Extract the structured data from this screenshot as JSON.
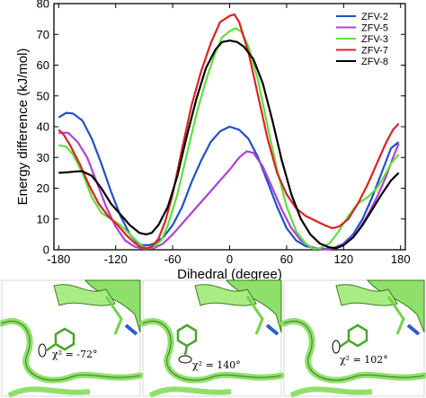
{
  "chart_data": {
    "type": "line",
    "xlabel": "Dihedral (degree)",
    "ylabel": "Energy difference (kJ/mol)",
    "xlim": [
      -185,
      185
    ],
    "ylim": [
      0,
      80
    ],
    "xticks": [
      -180,
      -120,
      -60,
      0,
      60,
      120,
      180
    ],
    "yticks": [
      0,
      10,
      20,
      30,
      40,
      50,
      60,
      70,
      80
    ],
    "grid": false,
    "legend_position": "top-right",
    "series": [
      {
        "name": "ZFV-2",
        "color": "#1f4fcf",
        "points": [
          [
            -180,
            43
          ],
          [
            -172,
            44.5
          ],
          [
            -165,
            44.3
          ],
          [
            -155,
            42
          ],
          [
            -145,
            36
          ],
          [
            -135,
            28
          ],
          [
            -125,
            19
          ],
          [
            -115,
            11
          ],
          [
            -105,
            5
          ],
          [
            -98,
            2.5
          ],
          [
            -92,
            1.5
          ],
          [
            -85,
            1.5
          ],
          [
            -78,
            2.2
          ],
          [
            -70,
            4
          ],
          [
            -60,
            8
          ],
          [
            -50,
            14
          ],
          [
            -40,
            22
          ],
          [
            -30,
            29
          ],
          [
            -20,
            35
          ],
          [
            -10,
            38.5
          ],
          [
            0,
            40
          ],
          [
            10,
            39
          ],
          [
            20,
            36
          ],
          [
            30,
            30
          ],
          [
            40,
            22
          ],
          [
            50,
            14
          ],
          [
            60,
            7
          ],
          [
            70,
            3
          ],
          [
            80,
            1.2
          ],
          [
            90,
            0.5
          ],
          [
            100,
            0.3
          ],
          [
            110,
            0.6
          ],
          [
            120,
            2
          ],
          [
            130,
            5
          ],
          [
            140,
            10
          ],
          [
            150,
            17
          ],
          [
            160,
            25
          ],
          [
            170,
            33
          ],
          [
            178,
            35
          ]
        ]
      },
      {
        "name": "ZFV-5",
        "color": "#b040d8",
        "points": [
          [
            -180,
            38
          ],
          [
            -170,
            38
          ],
          [
            -160,
            35
          ],
          [
            -150,
            30
          ],
          [
            -140,
            22
          ],
          [
            -130,
            14
          ],
          [
            -120,
            7.5
          ],
          [
            -110,
            3
          ],
          [
            -100,
            1
          ],
          [
            -90,
            0.3
          ],
          [
            -80,
            0.5
          ],
          [
            -70,
            2
          ],
          [
            -60,
            5
          ],
          [
            -50,
            8.5
          ],
          [
            -40,
            12
          ],
          [
            -30,
            15.5
          ],
          [
            -20,
            19
          ],
          [
            -10,
            22.5
          ],
          [
            0,
            26
          ],
          [
            10,
            30
          ],
          [
            18,
            32
          ],
          [
            25,
            31.5
          ],
          [
            35,
            27
          ],
          [
            45,
            20
          ],
          [
            55,
            13
          ],
          [
            65,
            7
          ],
          [
            75,
            3
          ],
          [
            85,
            1
          ],
          [
            95,
            0.2
          ],
          [
            105,
            0.2
          ],
          [
            115,
            1
          ],
          [
            125,
            3
          ],
          [
            135,
            6
          ],
          [
            145,
            11
          ],
          [
            155,
            17
          ],
          [
            165,
            24
          ],
          [
            172,
            30
          ],
          [
            178,
            34.5
          ]
        ]
      },
      {
        "name": "ZFV-3",
        "color": "#5fe03a",
        "points": [
          [
            -180,
            34
          ],
          [
            -172,
            33.5
          ],
          [
            -165,
            31
          ],
          [
            -155,
            25
          ],
          [
            -145,
            17
          ],
          [
            -135,
            12
          ],
          [
            -125,
            10
          ],
          [
            -115,
            8
          ],
          [
            -105,
            5
          ],
          [
            -95,
            2
          ],
          [
            -90,
            0.8
          ],
          [
            -85,
            0.5
          ],
          [
            -80,
            1
          ],
          [
            -72,
            3
          ],
          [
            -65,
            8
          ],
          [
            -55,
            18
          ],
          [
            -45,
            31
          ],
          [
            -35,
            44
          ],
          [
            -25,
            55
          ],
          [
            -15,
            64
          ],
          [
            -8,
            69
          ],
          [
            0,
            71
          ],
          [
            6,
            72
          ],
          [
            12,
            71
          ],
          [
            20,
            66
          ],
          [
            30,
            55
          ],
          [
            40,
            40
          ],
          [
            50,
            26
          ],
          [
            60,
            14
          ],
          [
            70,
            6
          ],
          [
            80,
            2
          ],
          [
            88,
            0.3
          ],
          [
            95,
            0.5
          ],
          [
            105,
            2
          ],
          [
            115,
            6
          ],
          [
            125,
            11
          ],
          [
            135,
            15
          ],
          [
            145,
            17
          ],
          [
            155,
            20
          ],
          [
            163,
            24
          ],
          [
            170,
            28
          ],
          [
            178,
            31
          ]
        ]
      },
      {
        "name": "ZFV-7",
        "color": "#e02020",
        "points": [
          [
            -180,
            39
          ],
          [
            -175,
            37.5
          ],
          [
            -168,
            34
          ],
          [
            -158,
            28
          ],
          [
            -148,
            21
          ],
          [
            -138,
            15
          ],
          [
            -128,
            11
          ],
          [
            -118,
            8
          ],
          [
            -108,
            4.5
          ],
          [
            -100,
            2.2
          ],
          [
            -93,
            0.8
          ],
          [
            -87,
            0.5
          ],
          [
            -82,
            1
          ],
          [
            -75,
            3.5
          ],
          [
            -68,
            9
          ],
          [
            -60,
            18
          ],
          [
            -50,
            33
          ],
          [
            -40,
            47
          ],
          [
            -30,
            58
          ],
          [
            -20,
            67
          ],
          [
            -10,
            74
          ],
          [
            0,
            76
          ],
          [
            5,
            76.5
          ],
          [
            10,
            74
          ],
          [
            20,
            64
          ],
          [
            30,
            50
          ],
          [
            40,
            36
          ],
          [
            50,
            25
          ],
          [
            60,
            18
          ],
          [
            70,
            13.5
          ],
          [
            80,
            11
          ],
          [
            90,
            9.5
          ],
          [
            100,
            8
          ],
          [
            108,
            7
          ],
          [
            115,
            7.5
          ],
          [
            125,
            10
          ],
          [
            135,
            15
          ],
          [
            145,
            21
          ],
          [
            155,
            28
          ],
          [
            165,
            35
          ],
          [
            172,
            39
          ],
          [
            178,
            41
          ]
        ]
      },
      {
        "name": "ZFV-8",
        "color": "#000000",
        "points": [
          [
            -180,
            25
          ],
          [
            -170,
            25.2
          ],
          [
            -160,
            25.5
          ],
          [
            -155,
            25.5
          ],
          [
            -145,
            24
          ],
          [
            -135,
            20
          ],
          [
            -125,
            15
          ],
          [
            -115,
            11.5
          ],
          [
            -105,
            8
          ],
          [
            -95,
            5.5
          ],
          [
            -88,
            5
          ],
          [
            -82,
            5.5
          ],
          [
            -75,
            8
          ],
          [
            -65,
            14
          ],
          [
            -55,
            24
          ],
          [
            -45,
            37
          ],
          [
            -35,
            49
          ],
          [
            -25,
            59
          ],
          [
            -15,
            65
          ],
          [
            -8,
            67.5
          ],
          [
            0,
            68
          ],
          [
            8,
            67.5
          ],
          [
            15,
            66
          ],
          [
            25,
            62
          ],
          [
            35,
            54
          ],
          [
            45,
            42
          ],
          [
            55,
            29
          ],
          [
            65,
            18
          ],
          [
            75,
            10
          ],
          [
            85,
            5
          ],
          [
            95,
            2
          ],
          [
            105,
            0.8
          ],
          [
            112,
            0.5
          ],
          [
            120,
            1.5
          ],
          [
            130,
            4
          ],
          [
            140,
            8
          ],
          [
            150,
            13
          ],
          [
            160,
            18
          ],
          [
            170,
            22.5
          ],
          [
            178,
            25
          ]
        ]
      }
    ]
  },
  "panels": [
    {
      "angle_label": "χ² = -72°"
    },
    {
      "angle_label": "χ² = 140°"
    },
    {
      "angle_label": "χ² = 102°"
    }
  ]
}
